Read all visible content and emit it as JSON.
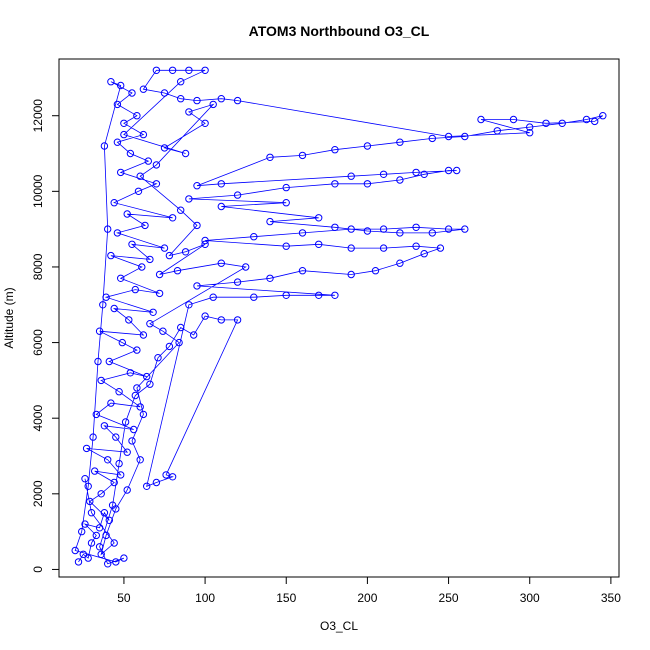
{
  "chart_data": {
    "type": "scatter",
    "title": "ATOM3 Northbound O3_CL",
    "xlabel": "O3_CL",
    "ylabel": "Altitude (m)",
    "xlim": [
      10,
      355
    ],
    "ylim": [
      -200,
      13500
    ],
    "xticks": [
      50,
      100,
      150,
      200,
      250,
      300,
      350
    ],
    "yticks": [
      0,
      2000,
      4000,
      6000,
      8000,
      10000,
      12000
    ],
    "grid": false,
    "marker": "open-circle",
    "connected_lines": true,
    "series": [
      {
        "color": "#0000ff",
        "points": [
          [
            22,
            200
          ],
          [
            25,
            400
          ],
          [
            28,
            300
          ],
          [
            30,
            700
          ],
          [
            33,
            900
          ],
          [
            26,
            1200
          ],
          [
            35,
            1100
          ],
          [
            38,
            1500
          ],
          [
            41,
            1300
          ],
          [
            29,
            1800
          ],
          [
            36,
            2000
          ],
          [
            44,
            2300
          ],
          [
            32,
            2600
          ],
          [
            48,
            2500
          ],
          [
            40,
            2900
          ],
          [
            27,
            3200
          ],
          [
            52,
            3100
          ],
          [
            45,
            3500
          ],
          [
            38,
            3800
          ],
          [
            56,
            3700
          ],
          [
            33,
            4100
          ],
          [
            42,
            4400
          ],
          [
            60,
            4300
          ],
          [
            47,
            4700
          ],
          [
            36,
            5000
          ],
          [
            54,
            5200
          ],
          [
            64,
            5100
          ],
          [
            41,
            5500
          ],
          [
            58,
            5800
          ],
          [
            49,
            6000
          ],
          [
            35,
            6300
          ],
          [
            62,
            6200
          ],
          [
            53,
            6600
          ],
          [
            44,
            6900
          ],
          [
            68,
            6800
          ],
          [
            39,
            7200
          ],
          [
            57,
            7400
          ],
          [
            72,
            7300
          ],
          [
            48,
            7700
          ],
          [
            61,
            8000
          ],
          [
            42,
            8300
          ],
          [
            66,
            8200
          ],
          [
            55,
            8600
          ],
          [
            75,
            8500
          ],
          [
            46,
            8900
          ],
          [
            63,
            9100
          ],
          [
            52,
            9400
          ],
          [
            80,
            9300
          ],
          [
            44,
            9700
          ],
          [
            59,
            10000
          ],
          [
            70,
            10200
          ],
          [
            48,
            10500
          ],
          [
            65,
            10800
          ],
          [
            54,
            11000
          ],
          [
            46,
            11300
          ],
          [
            62,
            11500
          ],
          [
            50,
            11800
          ],
          [
            58,
            12000
          ],
          [
            46,
            12300
          ],
          [
            55,
            12600
          ],
          [
            42,
            12900
          ],
          [
            48,
            12800
          ],
          [
            38,
            11200
          ],
          [
            40,
            9000
          ],
          [
            37,
            7000
          ],
          [
            34,
            5500
          ],
          [
            31,
            3500
          ],
          [
            28,
            2200
          ],
          [
            24,
            1000
          ],
          [
            20,
            500
          ],
          [
            45,
            200
          ],
          [
            50,
            300
          ],
          [
            40,
            150
          ],
          [
            35,
            600
          ],
          [
            43,
            1700
          ],
          [
            47,
            2800
          ],
          [
            51,
            3900
          ],
          [
            57,
            4600
          ],
          [
            66,
            4900
          ],
          [
            71,
            5600
          ],
          [
            78,
            5900
          ],
          [
            85,
            6400
          ],
          [
            93,
            6200
          ],
          [
            100,
            6700
          ],
          [
            110,
            6600
          ],
          [
            120,
            6600
          ],
          [
            76,
            2500
          ],
          [
            80,
            2450
          ],
          [
            70,
            2300
          ],
          [
            64,
            2200
          ],
          [
            90,
            7000
          ],
          [
            105,
            7200
          ],
          [
            130,
            7200
          ],
          [
            150,
            7250
          ],
          [
            170,
            7250
          ],
          [
            180,
            7250
          ],
          [
            95,
            7500
          ],
          [
            120,
            7600
          ],
          [
            140,
            7700
          ],
          [
            160,
            7900
          ],
          [
            190,
            7800
          ],
          [
            205,
            7900
          ],
          [
            220,
            8100
          ],
          [
            235,
            8350
          ],
          [
            245,
            8500
          ],
          [
            230,
            8550
          ],
          [
            210,
            8500
          ],
          [
            190,
            8500
          ],
          [
            170,
            8600
          ],
          [
            150,
            8550
          ],
          [
            100,
            8700
          ],
          [
            130,
            8800
          ],
          [
            160,
            8900
          ],
          [
            190,
            9000
          ],
          [
            210,
            9000
          ],
          [
            230,
            9050
          ],
          [
            250,
            9000
          ],
          [
            260,
            9000
          ],
          [
            240,
            8900
          ],
          [
            220,
            8900
          ],
          [
            200,
            8950
          ],
          [
            180,
            9050
          ],
          [
            140,
            9200
          ],
          [
            170,
            9300
          ],
          [
            110,
            9600
          ],
          [
            150,
            9700
          ],
          [
            90,
            9800
          ],
          [
            120,
            9900
          ],
          [
            150,
            10100
          ],
          [
            180,
            10200
          ],
          [
            200,
            10200
          ],
          [
            220,
            10300
          ],
          [
            235,
            10450
          ],
          [
            250,
            10550
          ],
          [
            255,
            10550
          ],
          [
            230,
            10500
          ],
          [
            210,
            10450
          ],
          [
            190,
            10400
          ],
          [
            110,
            10200
          ],
          [
            95,
            10150
          ],
          [
            140,
            10900
          ],
          [
            160,
            10950
          ],
          [
            180,
            11100
          ],
          [
            200,
            11200
          ],
          [
            220,
            11300
          ],
          [
            240,
            11400
          ],
          [
            260,
            11450
          ],
          [
            280,
            11600
          ],
          [
            300,
            11700
          ],
          [
            320,
            11800
          ],
          [
            335,
            11900
          ],
          [
            345,
            12000
          ],
          [
            340,
            11850
          ],
          [
            310,
            11800
          ],
          [
            290,
            11900
          ],
          [
            270,
            11900
          ],
          [
            300,
            11550
          ],
          [
            250,
            11450
          ],
          [
            120,
            12400
          ],
          [
            110,
            12450
          ],
          [
            95,
            12400
          ],
          [
            85,
            12450
          ],
          [
            75,
            12600
          ],
          [
            62,
            12700
          ],
          [
            70,
            13200
          ],
          [
            80,
            13200
          ],
          [
            90,
            13200
          ],
          [
            100,
            13200
          ],
          [
            85,
            12900
          ],
          [
            50,
            11500
          ],
          [
            88,
            11000
          ],
          [
            75,
            11150
          ],
          [
            100,
            11800
          ],
          [
            90,
            12100
          ],
          [
            105,
            12300
          ],
          [
            70,
            10700
          ],
          [
            60,
            10400
          ],
          [
            85,
            9500
          ],
          [
            95,
            9100
          ],
          [
            78,
            8300
          ],
          [
            88,
            8400
          ],
          [
            100,
            8600
          ],
          [
            72,
            7800
          ],
          [
            83,
            7900
          ],
          [
            110,
            8100
          ],
          [
            125,
            8000
          ],
          [
            66,
            6500
          ],
          [
            74,
            6300
          ],
          [
            84,
            6000
          ],
          [
            58,
            4800
          ],
          [
            62,
            4100
          ],
          [
            55,
            3400
          ],
          [
            60,
            2900
          ],
          [
            52,
            2100
          ],
          [
            45,
            1600
          ],
          [
            39,
            900
          ],
          [
            36,
            400
          ],
          [
            44,
            700
          ],
          [
            30,
            1500
          ],
          [
            26,
            2400
          ]
        ]
      }
    ]
  }
}
